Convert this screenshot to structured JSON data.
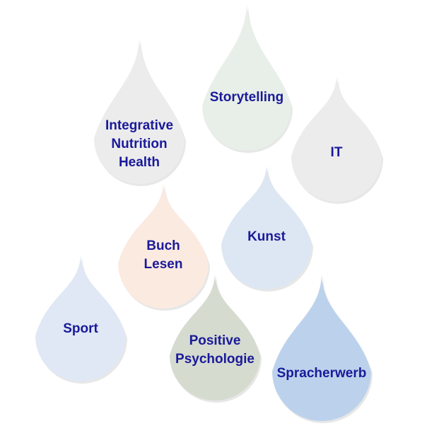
{
  "colors": {
    "text": "#1a1a9a",
    "shadow": "#c9c9c9"
  },
  "drops": [
    {
      "id": "integrative-nutrition-health",
      "lines": [
        "Integrative",
        "Nutrition",
        "Health"
      ],
      "fill": "#ececec"
    },
    {
      "id": "storytelling",
      "lines": [
        "Storytelling"
      ],
      "fill": "#e8efe8"
    },
    {
      "id": "it",
      "lines": [
        "IT"
      ],
      "fill": "#ececec"
    },
    {
      "id": "buch-lesen",
      "lines": [
        "Buch",
        "Lesen"
      ],
      "fill": "#fbeae0"
    },
    {
      "id": "kunst",
      "lines": [
        "Kunst"
      ],
      "fill": "#dde7f3"
    },
    {
      "id": "sport",
      "lines": [
        "Sport"
      ],
      "fill": "#dfe8f4"
    },
    {
      "id": "positive-psychologie",
      "lines": [
        "Positive",
        "Psychologie"
      ],
      "fill": "#d5dbcf"
    },
    {
      "id": "spracherwerb",
      "lines": [
        "Spracherwerb"
      ],
      "fill": "#bcd2ec"
    }
  ]
}
